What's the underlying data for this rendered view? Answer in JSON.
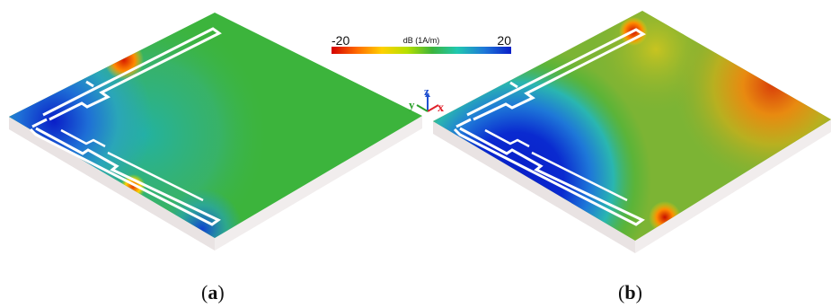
{
  "figure": {
    "panels": [
      {
        "id": "a",
        "caption_open": "(",
        "caption_letter": "a",
        "caption_close": ")"
      },
      {
        "id": "b",
        "caption_open": "(",
        "caption_letter": "b",
        "caption_close": ")"
      }
    ],
    "colorbar": {
      "min_label": "-20",
      "max_label": "20",
      "unit_label": "dB (1A/m)",
      "colors": [
        "#d40000",
        "#ff6a00",
        "#ffd000",
        "#b6e000",
        "#3cb43c",
        "#20c8b0",
        "#1e78d8",
        "#0a1ec8"
      ]
    },
    "axes_triad": {
      "x_label": "x",
      "y_label": "y",
      "z_label": "z",
      "x_color": "#e0202a",
      "y_color": "#2aa02a",
      "z_color": "#2050d0"
    }
  }
}
